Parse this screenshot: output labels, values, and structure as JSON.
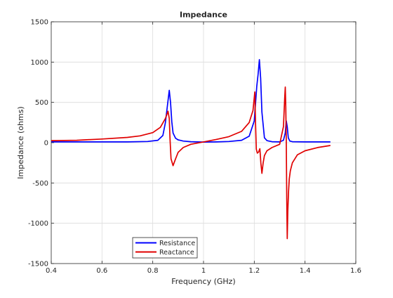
{
  "chart_data": {
    "type": "line",
    "title": "Impedance",
    "xlabel": "Frequency (GHz)",
    "ylabel": "Impedance (ohms)",
    "xlim": [
      0.4,
      1.6
    ],
    "ylim": [
      -1500,
      1500
    ],
    "xticks": [
      0.4,
      0.6,
      0.8,
      1,
      1.2,
      1.4,
      1.6
    ],
    "xtick_labels": [
      "0.4",
      "0.6",
      "0.8",
      "1",
      "1.2",
      "1.4",
      "1.6"
    ],
    "yticks": [
      -1500,
      -1000,
      -500,
      0,
      500,
      1000,
      1500
    ],
    "ytick_labels": [
      "-1500",
      "-1000",
      "-500",
      "0",
      "500",
      "1000",
      "1500"
    ],
    "grid": true,
    "legend_placement": "bottom-left",
    "series": [
      {
        "name": "Resistance",
        "color": "#0000ff",
        "x": [
          0.4,
          0.5,
          0.6,
          0.7,
          0.78,
          0.82,
          0.84,
          0.85,
          0.86,
          0.865,
          0.87,
          0.875,
          0.88,
          0.89,
          0.9,
          0.92,
          0.95,
          1.0,
          1.05,
          1.1,
          1.15,
          1.18,
          1.2,
          1.21,
          1.215,
          1.22,
          1.225,
          1.23,
          1.24,
          1.25,
          1.27,
          1.3,
          1.315,
          1.322,
          1.326,
          1.33,
          1.334,
          1.34,
          1.35,
          1.4,
          1.5
        ],
        "y": [
          10,
          10,
          10,
          10,
          15,
          30,
          90,
          250,
          520,
          650,
          500,
          260,
          120,
          55,
          35,
          20,
          12,
          8,
          10,
          15,
          30,
          80,
          270,
          700,
          850,
          1030,
          800,
          380,
          60,
          25,
          12,
          10,
          30,
          120,
          270,
          200,
          60,
          20,
          12,
          10,
          10
        ]
      },
      {
        "name": "Reactance",
        "color": "#e00000",
        "x": [
          0.4,
          0.5,
          0.6,
          0.7,
          0.75,
          0.8,
          0.83,
          0.85,
          0.86,
          0.865,
          0.868,
          0.872,
          0.88,
          0.89,
          0.9,
          0.92,
          0.95,
          1.0,
          1.05,
          1.1,
          1.15,
          1.18,
          1.195,
          1.2,
          1.202,
          1.205,
          1.208,
          1.212,
          1.217,
          1.222,
          1.226,
          1.23,
          1.235,
          1.24,
          1.25,
          1.27,
          1.3,
          1.315,
          1.32,
          1.322,
          1.324,
          1.326,
          1.328,
          1.33,
          1.332,
          1.335,
          1.338,
          1.342,
          1.35,
          1.37,
          1.4,
          1.45,
          1.5
        ],
        "y": [
          25,
          30,
          45,
          65,
          85,
          125,
          190,
          300,
          390,
          300,
          40,
          -200,
          -285,
          -200,
          -120,
          -60,
          -20,
          10,
          40,
          75,
          140,
          250,
          400,
          560,
          630,
          250,
          -80,
          -130,
          -115,
          -75,
          -250,
          -380,
          -250,
          -160,
          -100,
          -60,
          -20,
          200,
          560,
          690,
          450,
          50,
          -700,
          -1190,
          -850,
          -600,
          -450,
          -350,
          -250,
          -150,
          -100,
          -60,
          -35
        ]
      }
    ]
  }
}
